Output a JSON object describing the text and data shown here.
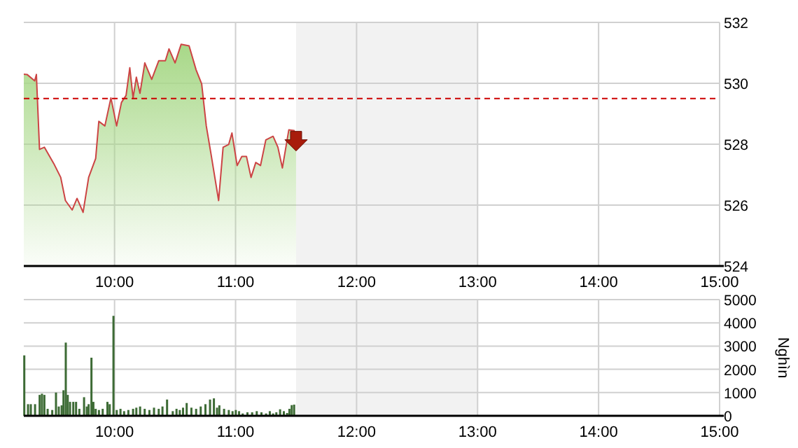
{
  "chart_data": [
    {
      "type": "area",
      "x": [
        9.25,
        9.277,
        9.34,
        9.354,
        9.38,
        9.42,
        9.497,
        9.555,
        9.594,
        9.65,
        9.69,
        9.74,
        9.786,
        9.844,
        9.87,
        9.92,
        9.97,
        10.017,
        10.057,
        10.095,
        10.126,
        10.153,
        10.18,
        10.21,
        10.25,
        10.307,
        10.365,
        10.42,
        10.45,
        10.5,
        10.55,
        10.616,
        10.674,
        10.72,
        10.758,
        10.797,
        10.86,
        10.897,
        10.943,
        10.97,
        11.013,
        11.052,
        11.09,
        11.128,
        11.167,
        11.206,
        11.25,
        11.31,
        11.35,
        11.387,
        11.44,
        11.484,
        11.5
      ],
      "series": [
        {
          "color": "#a8d888",
          "values": [
            530.3,
            530.29,
            530.08,
            530.29,
            527.83,
            527.9,
            527.37,
            526.91,
            526.15,
            525.84,
            526.22,
            525.76,
            526.91,
            527.53,
            528.75,
            528.6,
            529.52,
            528.6,
            529.37,
            529.6,
            530.51,
            529.52,
            530.2,
            529.67,
            530.67,
            530.13,
            530.74,
            530.74,
            531.13,
            530.67,
            531.28,
            531.23,
            530.44,
            529.98,
            528.6,
            527.68,
            526.15,
            527.9,
            527.99,
            528.37,
            527.3,
            527.6,
            527.6,
            526.91,
            527.4,
            527.3,
            528.14,
            528.26,
            527.9,
            527.22,
            528.47,
            528.45,
            528.1
          ]
        }
      ],
      "xlim": [
        9.25,
        15
      ],
      "xticks": [
        {
          "value": 10,
          "label": "10:00"
        },
        {
          "value": 11,
          "label": "11:00"
        },
        {
          "value": 12,
          "label": "12:00"
        },
        {
          "value": 13,
          "label": "13:00"
        },
        {
          "value": 14,
          "label": "14:00"
        },
        {
          "value": 15,
          "label": "15:00"
        }
      ],
      "ylim": [
        524,
        532
      ],
      "yticks": [
        524,
        526,
        528,
        530,
        532
      ],
      "grid": true,
      "ref_lines": [
        {
          "axis": "y",
          "value": 529.5,
          "color": "#cc0000",
          "line_style": "dashed"
        }
      ],
      "bands": [
        {
          "axis": "x",
          "from": 11.5,
          "to": 13,
          "color": "#f2f2f2"
        }
      ]
    },
    {
      "type": "bar",
      "ylabel": "Nghìn",
      "x": [
        9.254,
        9.285,
        9.308,
        9.343,
        9.381,
        9.4,
        9.42,
        9.447,
        9.485,
        9.516,
        9.539,
        9.563,
        9.578,
        9.597,
        9.613,
        9.632,
        9.659,
        9.682,
        9.709,
        9.748,
        9.771,
        9.786,
        9.809,
        9.825,
        9.844,
        9.871,
        9.902,
        9.941,
        9.96,
        9.991,
        10.018,
        10.049,
        10.079,
        10.114,
        10.153,
        10.18,
        10.211,
        10.249,
        10.288,
        10.326,
        10.365,
        10.396,
        10.434,
        10.481,
        10.512,
        10.539,
        10.566,
        10.596,
        10.635,
        10.674,
        10.712,
        10.751,
        10.789,
        10.821,
        10.847,
        10.866,
        10.905,
        10.944,
        10.975,
        11.002,
        11.029,
        11.059,
        11.098,
        11.137,
        11.175,
        11.214,
        11.252,
        11.283,
        11.31,
        11.337,
        11.368,
        11.399,
        11.426,
        11.445,
        11.464,
        11.484
      ],
      "series": [
        {
          "color": "#3d6b35",
          "values": [
            2600,
            500,
            500,
            500,
            900,
            950,
            900,
            300,
            250,
            1000,
            400,
            450,
            1100,
            3150,
            900,
            600,
            600,
            600,
            300,
            800,
            400,
            500,
            2500,
            600,
            300,
            250,
            300,
            600,
            500,
            4300,
            250,
            300,
            200,
            250,
            300,
            350,
            400,
            300,
            250,
            350,
            300,
            400,
            700,
            200,
            300,
            250,
            350,
            550,
            350,
            300,
            400,
            500,
            700,
            750,
            350,
            450,
            300,
            250,
            200,
            250,
            200,
            100,
            150,
            150,
            200,
            150,
            100,
            200,
            100,
            150,
            280,
            200,
            120,
            300,
            460,
            480
          ]
        }
      ],
      "xlim": [
        9.25,
        15
      ],
      "xticks": [
        {
          "value": 10,
          "label": "10:00"
        },
        {
          "value": 11,
          "label": "11:00"
        },
        {
          "value": 12,
          "label": "12:00"
        },
        {
          "value": 13,
          "label": "13:00"
        },
        {
          "value": 14,
          "label": "14:00"
        },
        {
          "value": 15,
          "label": "15:00"
        }
      ],
      "ylim": [
        0,
        5000
      ],
      "yticks": [
        0,
        1000,
        2000,
        3000,
        4000,
        5000
      ],
      "grid": true,
      "bands": [
        {
          "axis": "x",
          "from": 11.5,
          "to": 13,
          "color": "#f2f2f2"
        }
      ]
    }
  ]
}
